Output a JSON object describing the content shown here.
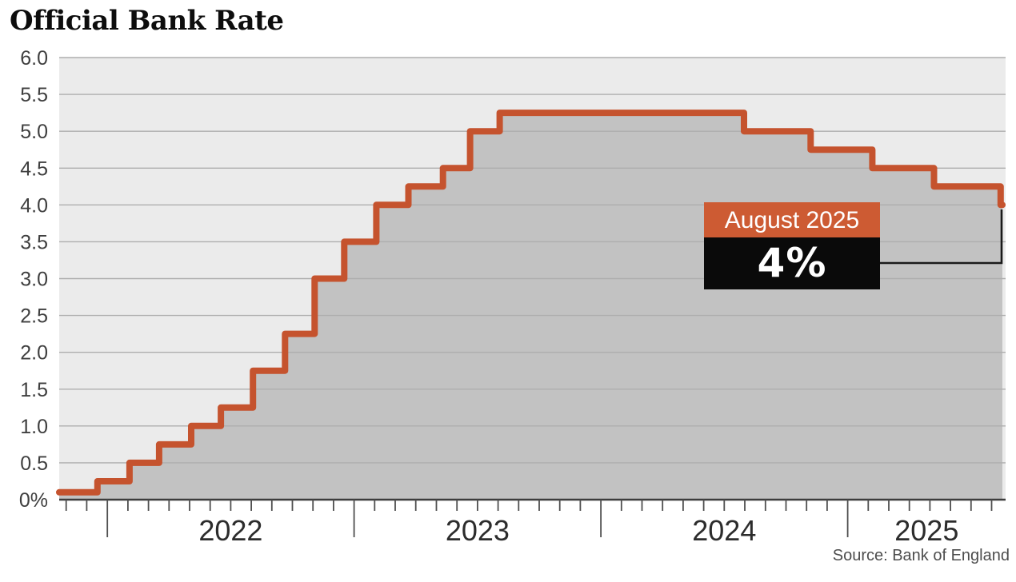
{
  "header": {
    "title": "Official Bank Rate"
  },
  "source": {
    "label": "Source: Bank of England"
  },
  "annotation": {
    "label": "August 2025",
    "value": "4%",
    "label_bg": "#cd5b33",
    "value_bg": "#0a0a0a",
    "text_color": "#ffffff"
  },
  "colors": {
    "line": "#c5532e",
    "area_fill": "#c2c2c2",
    "plot_bg": "#ebebeb",
    "gridline": "#aeaeae",
    "axis": "#3c3c3c",
    "tick": "#4f4f4f",
    "connector": "#1a1a1a"
  },
  "chart_data": {
    "type": "area",
    "step": true,
    "title": "Official Bank Rate",
    "unit": "%",
    "xlabel": "",
    "ylabel": "",
    "ylim": [
      0,
      6
    ],
    "grid": true,
    "legend": "none",
    "y_ticks": [
      {
        "value": 6.0,
        "label": "6.0"
      },
      {
        "value": 5.5,
        "label": "5.5"
      },
      {
        "value": 5.0,
        "label": "5.0"
      },
      {
        "value": 4.5,
        "label": "4.5"
      },
      {
        "value": 4.0,
        "label": "4.0"
      },
      {
        "value": 3.5,
        "label": "3.5"
      },
      {
        "value": 3.0,
        "label": "3.0"
      },
      {
        "value": 2.5,
        "label": "2.5"
      },
      {
        "value": 2.0,
        "label": "2.0"
      },
      {
        "value": 1.5,
        "label": "1.5"
      },
      {
        "value": 1.0,
        "label": "1.0"
      },
      {
        "value": 0.5,
        "label": "0.5"
      },
      {
        "value": 0,
        "label": "0%"
      }
    ],
    "x_domain": [
      2021.805,
      2025.64
    ],
    "x_year_labels": [
      "2022",
      "2023",
      "2024",
      "2025"
    ],
    "series": [
      {
        "name": "Official Bank Rate",
        "points": [
          {
            "date": "Nov 2021",
            "t": 2021.805,
            "rate": 0.1
          },
          {
            "date": "Dec 2021",
            "t": 2021.96,
            "rate": 0.25
          },
          {
            "date": "Feb 2022",
            "t": 2022.09,
            "rate": 0.5
          },
          {
            "date": "Mar 2022",
            "t": 2022.21,
            "rate": 0.75
          },
          {
            "date": "May 2022",
            "t": 2022.34,
            "rate": 1.0
          },
          {
            "date": "Jun 2022",
            "t": 2022.46,
            "rate": 1.25
          },
          {
            "date": "Aug 2022",
            "t": 2022.59,
            "rate": 1.75
          },
          {
            "date": "Sep 2022",
            "t": 2022.72,
            "rate": 2.25
          },
          {
            "date": "Nov 2022",
            "t": 2022.84,
            "rate": 3.0
          },
          {
            "date": "Dec 2022",
            "t": 2022.96,
            "rate": 3.5
          },
          {
            "date": "Feb 2023",
            "t": 2023.09,
            "rate": 4.0
          },
          {
            "date": "Mar 2023",
            "t": 2023.22,
            "rate": 4.25
          },
          {
            "date": "May 2023",
            "t": 2023.36,
            "rate": 4.5
          },
          {
            "date": "Jun 2023",
            "t": 2023.47,
            "rate": 5.0
          },
          {
            "date": "Aug 2023",
            "t": 2023.59,
            "rate": 5.25
          },
          {
            "date": "Aug 2024",
            "t": 2024.58,
            "rate": 5.0
          },
          {
            "date": "Nov 2024",
            "t": 2024.85,
            "rate": 4.75
          },
          {
            "date": "Feb 2025",
            "t": 2025.1,
            "rate": 4.5
          },
          {
            "date": "May 2025",
            "t": 2025.35,
            "rate": 4.25
          },
          {
            "date": "Aug 2025",
            "t": 2025.62,
            "rate": 4.0
          }
        ]
      }
    ],
    "annotation": {
      "label": "August 2025",
      "value": "4%"
    },
    "source": "Source: Bank of England"
  }
}
